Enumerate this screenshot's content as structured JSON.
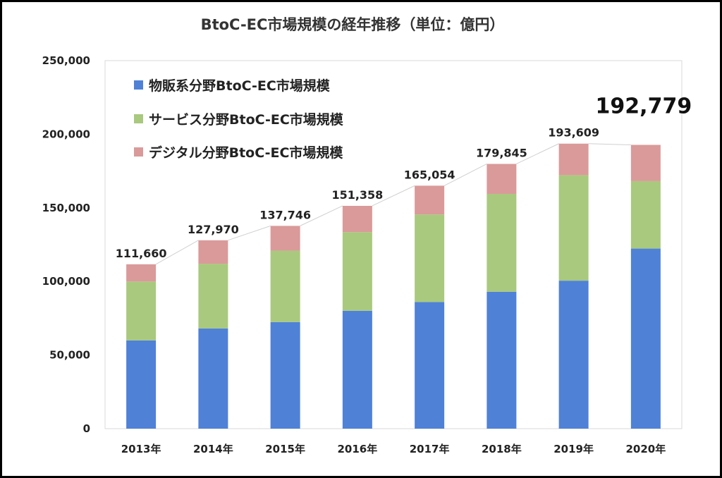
{
  "chart_data": {
    "type": "bar",
    "stacked": true,
    "title": "BtoC-EC市場規模の経年推移（単位：億円）",
    "categories": [
      "2013年",
      "2014年",
      "2015年",
      "2016年",
      "2017年",
      "2018年",
      "2019年",
      "2020年"
    ],
    "series": [
      {
        "name": "物販系分野BtoC-EC市場規模",
        "color": "#4F81D7",
        "values": [
          59931,
          68043,
          72398,
          80043,
          86008,
          92992,
          100515,
          122333
        ]
      },
      {
        "name": "サービス分野BtoC-EC市場規模",
        "color": "#A9C97E",
        "values": [
          40000,
          44000,
          48500,
          53500,
          59500,
          66500,
          71700,
          45800
        ]
      },
      {
        "name": "デジタル分野BtoC-EC市場規模",
        "color": "#DA9A9A",
        "values": [
          11729,
          15927,
          16848,
          17815,
          19546,
          20353,
          21394,
          24646
        ]
      }
    ],
    "totals": [
      "111,660",
      "127,970",
      "137,746",
      "151,358",
      "165,054",
      "179,845",
      "193,609",
      "192,779"
    ],
    "ylim": [
      0,
      250000
    ],
    "yticks": [
      "0",
      "50,000",
      "100,000",
      "150,000",
      "200,000",
      "250,000"
    ],
    "ytick_values": [
      0,
      50000,
      100000,
      150000,
      200000,
      250000
    ],
    "grid": false,
    "legend_position": "top-left"
  }
}
